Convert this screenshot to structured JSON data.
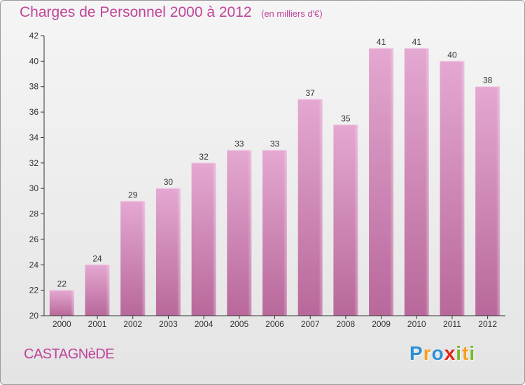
{
  "title": "Charges de Personnel 2000 à 2012",
  "subtitle": "(en milliers d'€)",
  "commune": "CASTAGNèDE",
  "logo": {
    "text": "Proxiti",
    "letters": [
      {
        "ch": "P",
        "color": "#2a8fd8"
      },
      {
        "ch": "r",
        "color": "#f5a020"
      },
      {
        "ch": "o",
        "color": "#2a8fd8"
      },
      {
        "ch": "x",
        "color": "#e2231a"
      },
      {
        "ch": "i",
        "color": "#78b82a"
      },
      {
        "ch": "t",
        "color": "#f5a020"
      },
      {
        "ch": "i",
        "color": "#78b82a"
      }
    ]
  },
  "colors": {
    "bar_top": "#e4a8d2",
    "bar_bottom": "#b8689a",
    "text": "#c0449a",
    "axis": "#333333"
  },
  "chart_data": {
    "type": "bar",
    "categories": [
      "2000",
      "2001",
      "2002",
      "2003",
      "2004",
      "2005",
      "2006",
      "2007",
      "2008",
      "2009",
      "2010",
      "2011",
      "2012"
    ],
    "values": [
      22,
      24,
      29,
      30,
      32,
      33,
      33,
      37,
      35,
      41,
      41,
      40,
      38
    ],
    "title": "Charges de Personnel 2000 à 2012",
    "ylim": [
      20,
      42
    ],
    "yticks": [
      20,
      22,
      24,
      26,
      28,
      30,
      32,
      34,
      36,
      38,
      40,
      42
    ],
    "grid": false,
    "legend": "none"
  }
}
